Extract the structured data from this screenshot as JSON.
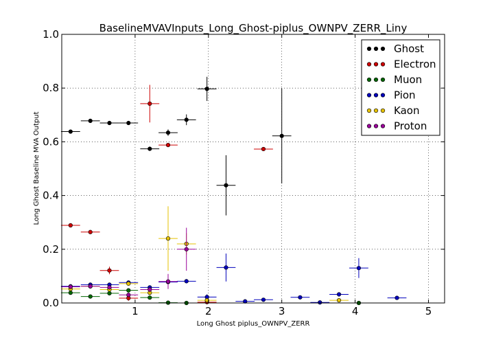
{
  "chart_data": {
    "type": "scatter",
    "title": "BaselineMVAVInputs_Long_Ghost-piplus_OWNPV_ZERR_Liny",
    "xlabel": "Long Ghost piplus_OWNPV_ZERR",
    "ylabel": "Long Ghost Baseline MVA Output",
    "xlim": [
      0.0,
      5.22
    ],
    "ylim": [
      0.0,
      1.0
    ],
    "x_ticks": [
      "1",
      "2",
      "3",
      "4",
      "5"
    ],
    "x_tick_values": [
      1,
      2,
      3,
      4,
      5
    ],
    "y_ticks": [
      "0.0",
      "0.2",
      "0.4",
      "0.6",
      "0.8",
      "1.0"
    ],
    "y_tick_values": [
      0.0,
      0.2,
      0.4,
      0.6,
      0.8,
      1.0
    ],
    "grid": true,
    "legend_position": "top-right",
    "x_bin_half_width": 0.13,
    "series": [
      {
        "name": "Ghost",
        "color": "#000000",
        "points": [
          {
            "x": 0.12,
            "y": 0.638,
            "err": 0.004
          },
          {
            "x": 0.39,
            "y": 0.678,
            "err": 0.004
          },
          {
            "x": 0.65,
            "y": 0.67,
            "err": 0.003
          },
          {
            "x": 0.91,
            "y": 0.67,
            "err": 0.004
          },
          {
            "x": 1.2,
            "y": 0.574,
            "err": 0.008
          },
          {
            "x": 1.45,
            "y": 0.634,
            "err": 0.012
          },
          {
            "x": 1.7,
            "y": 0.682,
            "err": 0.02
          },
          {
            "x": 1.98,
            "y": 0.797,
            "err": 0.045
          },
          {
            "x": 2.24,
            "y": 0.438,
            "err": 0.112
          },
          {
            "x": 3.0,
            "y": 0.622,
            "err": 0.177
          }
        ]
      },
      {
        "name": "Electron",
        "color": "#cc0000",
        "points": [
          {
            "x": 0.12,
            "y": 0.289,
            "err": 0.003
          },
          {
            "x": 0.39,
            "y": 0.264,
            "err": 0.004
          },
          {
            "x": 0.65,
            "y": 0.121,
            "err": 0.014
          },
          {
            "x": 0.91,
            "y": 0.018,
            "err": 0.01
          },
          {
            "x": 1.2,
            "y": 0.742,
            "err": 0.07
          },
          {
            "x": 1.45,
            "y": 0.588,
            "err": 0.003
          },
          {
            "x": 1.98,
            "y": 0.003,
            "err": 0.003
          },
          {
            "x": 2.75,
            "y": 0.573,
            "err": 0.003
          }
        ]
      },
      {
        "name": "Muon",
        "color": "#006600",
        "points": [
          {
            "x": 0.12,
            "y": 0.038,
            "err": 0.006
          },
          {
            "x": 0.39,
            "y": 0.024,
            "err": 0.004
          },
          {
            "x": 0.65,
            "y": 0.036,
            "err": 0.005
          },
          {
            "x": 0.91,
            "y": 0.047,
            "err": 0.006
          },
          {
            "x": 1.2,
            "y": 0.02,
            "err": 0.006
          },
          {
            "x": 1.45,
            "y": 0.001,
            "err": 0.001
          },
          {
            "x": 1.7,
            "y": 0.0,
            "err": 0.0
          },
          {
            "x": 4.05,
            "y": 0.0,
            "err": 0.0
          }
        ]
      },
      {
        "name": "Pion",
        "color": "#0000bb",
        "points": [
          {
            "x": 0.12,
            "y": 0.062,
            "err": 0.004
          },
          {
            "x": 0.39,
            "y": 0.068,
            "err": 0.004
          },
          {
            "x": 0.65,
            "y": 0.068,
            "err": 0.004
          },
          {
            "x": 0.91,
            "y": 0.076,
            "err": 0.004
          },
          {
            "x": 1.2,
            "y": 0.058,
            "err": 0.006
          },
          {
            "x": 1.45,
            "y": 0.078,
            "err": 0.008
          },
          {
            "x": 1.7,
            "y": 0.081,
            "err": 0.008
          },
          {
            "x": 1.98,
            "y": 0.022,
            "err": 0.01
          },
          {
            "x": 2.24,
            "y": 0.132,
            "err": 0.052
          },
          {
            "x": 2.5,
            "y": 0.006,
            "err": 0.003
          },
          {
            "x": 2.75,
            "y": 0.012,
            "err": 0.004
          },
          {
            "x": 3.25,
            "y": 0.021,
            "err": 0.005
          },
          {
            "x": 3.52,
            "y": 0.002,
            "err": 0.002
          },
          {
            "x": 3.78,
            "y": 0.032,
            "err": 0.008
          },
          {
            "x": 4.05,
            "y": 0.13,
            "err": 0.037
          },
          {
            "x": 4.57,
            "y": 0.019,
            "err": 0.004
          }
        ]
      },
      {
        "name": "Kaon",
        "color": "#e6c200",
        "points": [
          {
            "x": 0.12,
            "y": 0.052,
            "err": 0.005
          },
          {
            "x": 0.39,
            "y": 0.062,
            "err": 0.005
          },
          {
            "x": 0.65,
            "y": 0.05,
            "err": 0.005
          },
          {
            "x": 0.91,
            "y": 0.072,
            "err": 0.006
          },
          {
            "x": 1.2,
            "y": 0.038,
            "err": 0.008
          },
          {
            "x": 1.45,
            "y": 0.24,
            "err": 0.12
          },
          {
            "x": 1.7,
            "y": 0.22,
            "err": 0.04
          },
          {
            "x": 1.98,
            "y": 0.01,
            "err": 0.008
          },
          {
            "x": 3.78,
            "y": 0.01,
            "err": 0.005
          }
        ]
      },
      {
        "name": "Proton",
        "color": "#990099",
        "points": [
          {
            "x": 0.12,
            "y": 0.06,
            "err": 0.004
          },
          {
            "x": 0.39,
            "y": 0.062,
            "err": 0.004
          },
          {
            "x": 0.65,
            "y": 0.058,
            "err": 0.005
          },
          {
            "x": 0.91,
            "y": 0.03,
            "err": 0.006
          },
          {
            "x": 1.2,
            "y": 0.05,
            "err": 0.01
          },
          {
            "x": 1.45,
            "y": 0.08,
            "err": 0.028
          },
          {
            "x": 1.7,
            "y": 0.2,
            "err": 0.08
          }
        ]
      }
    ]
  }
}
